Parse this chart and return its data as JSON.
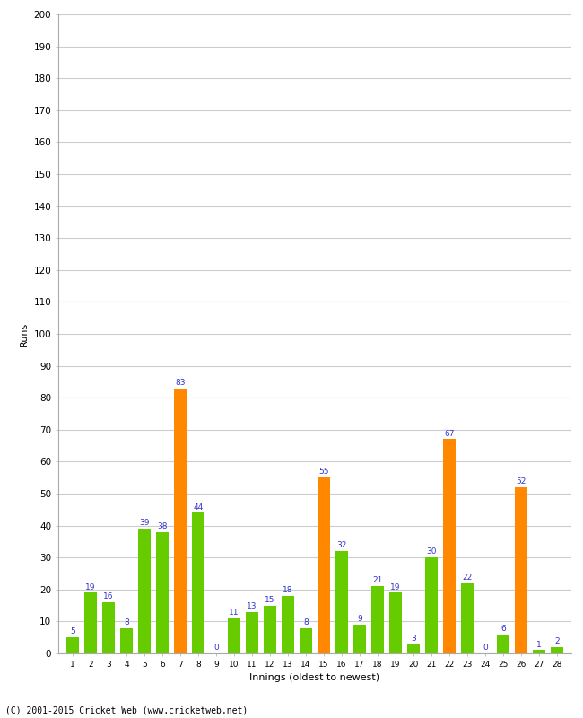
{
  "innings": [
    1,
    2,
    3,
    4,
    5,
    6,
    7,
    8,
    9,
    10,
    11,
    12,
    13,
    14,
    15,
    16,
    17,
    18,
    19,
    20,
    21,
    22,
    23,
    24,
    25,
    26,
    27,
    28
  ],
  "values": [
    5,
    19,
    16,
    8,
    39,
    38,
    83,
    44,
    0,
    11,
    13,
    15,
    18,
    8,
    55,
    32,
    9,
    21,
    19,
    3,
    30,
    67,
    22,
    0,
    6,
    52,
    1,
    2
  ],
  "colors": [
    "#66cc00",
    "#66cc00",
    "#66cc00",
    "#66cc00",
    "#66cc00",
    "#66cc00",
    "#ff8800",
    "#66cc00",
    "#66cc00",
    "#66cc00",
    "#66cc00",
    "#66cc00",
    "#66cc00",
    "#66cc00",
    "#ff8800",
    "#66cc00",
    "#66cc00",
    "#66cc00",
    "#66cc00",
    "#66cc00",
    "#66cc00",
    "#ff8800",
    "#66cc00",
    "#66cc00",
    "#66cc00",
    "#ff8800",
    "#66cc00",
    "#66cc00"
  ],
  "xlabel": "Innings (oldest to newest)",
  "ylabel": "Runs",
  "ylim": [
    0,
    200
  ],
  "yticks": [
    0,
    10,
    20,
    30,
    40,
    50,
    60,
    70,
    80,
    90,
    100,
    110,
    120,
    130,
    140,
    150,
    160,
    170,
    180,
    190,
    200
  ],
  "bg_color": "#ffffff",
  "plot_bg_color": "#ffffff",
  "grid_color": "#cccccc",
  "label_color": "#3333cc",
  "footer": "(C) 2001-2015 Cricket Web (www.cricketweb.net)"
}
